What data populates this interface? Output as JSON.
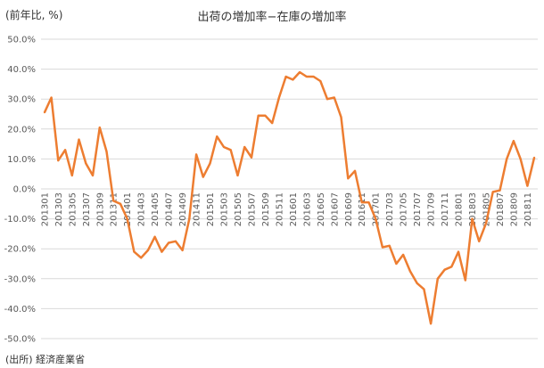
{
  "unit_label": "(前年比, %)",
  "source_label": "(出所) 経済産業省",
  "chart_data": {
    "type": "line",
    "title": "出荷の増加率−在庫の増加率",
    "ylim": [
      -50,
      50
    ],
    "yticks": [
      "50.0%",
      "40.0%",
      "30.0%",
      "20.0%",
      "10.0%",
      "0.0%",
      "-10.0%",
      "-20.0%",
      "-30.0%",
      "-40.0%",
      "-50.0%"
    ],
    "ytick_values": [
      50,
      40,
      30,
      20,
      10,
      0,
      -10,
      -20,
      -30,
      -40,
      -50
    ],
    "grid": true,
    "line_color": "#ed7d31",
    "x": [
      "201301",
      "201302",
      "201303",
      "201304",
      "201305",
      "201306",
      "201307",
      "201308",
      "201309",
      "201310",
      "201311",
      "201312",
      "201401",
      "201402",
      "201403",
      "201404",
      "201405",
      "201406",
      "201407",
      "201408",
      "201409",
      "201410",
      "201411",
      "201412",
      "201501",
      "201502",
      "201503",
      "201504",
      "201505",
      "201506",
      "201507",
      "201508",
      "201509",
      "201510",
      "201511",
      "201512",
      "201601",
      "201602",
      "201603",
      "201604",
      "201605",
      "201606",
      "201607",
      "201608",
      "201609",
      "201610",
      "201611",
      "201612",
      "201701",
      "201702",
      "201703",
      "201704",
      "201705",
      "201706",
      "201707",
      "201708",
      "201709",
      "201710",
      "201711",
      "201712",
      "201801",
      "201802",
      "201803",
      "201804",
      "201805",
      "201806",
      "201807",
      "201808",
      "201809",
      "201810",
      "201811",
      "201812"
    ],
    "xtick_labels": [
      "201301",
      "201303",
      "201305",
      "201307",
      "201309",
      "201311",
      "201401",
      "201403",
      "201405",
      "201407",
      "201409",
      "201411",
      "201501",
      "201503",
      "201505",
      "201507",
      "201509",
      "201511",
      "201601",
      "201603",
      "201605",
      "201607",
      "201609",
      "201611",
      "201701",
      "201703",
      "201705",
      "201707",
      "201709",
      "201711",
      "201801",
      "201803",
      "201805",
      "201807",
      "201809",
      "201811"
    ],
    "values": [
      25.5,
      30.5,
      9.5,
      13,
      4.5,
      16.5,
      8.5,
      4.5,
      20.5,
      12.5,
      -4,
      -5,
      -10,
      -21,
      -23,
      -20.5,
      -16,
      -21,
      -18,
      -17.5,
      -20.5,
      -10,
      11.5,
      4,
      8.5,
      17.5,
      14,
      13,
      4.5,
      14,
      10.5,
      24.5,
      24.5,
      22,
      30.5,
      37.5,
      36.5,
      39,
      37.5,
      37.5,
      36,
      30,
      30.5,
      24,
      3.5,
      6,
      -4.5,
      -4.5,
      -10,
      -19.5,
      -19,
      -25,
      -22,
      -27.5,
      -31.5,
      -33.5,
      -45,
      -30,
      -27,
      -26,
      -21,
      -30.5,
      -10,
      -17.5,
      -11.5,
      -1,
      -0.5,
      10,
      16,
      10,
      1,
      10.5
    ]
  }
}
